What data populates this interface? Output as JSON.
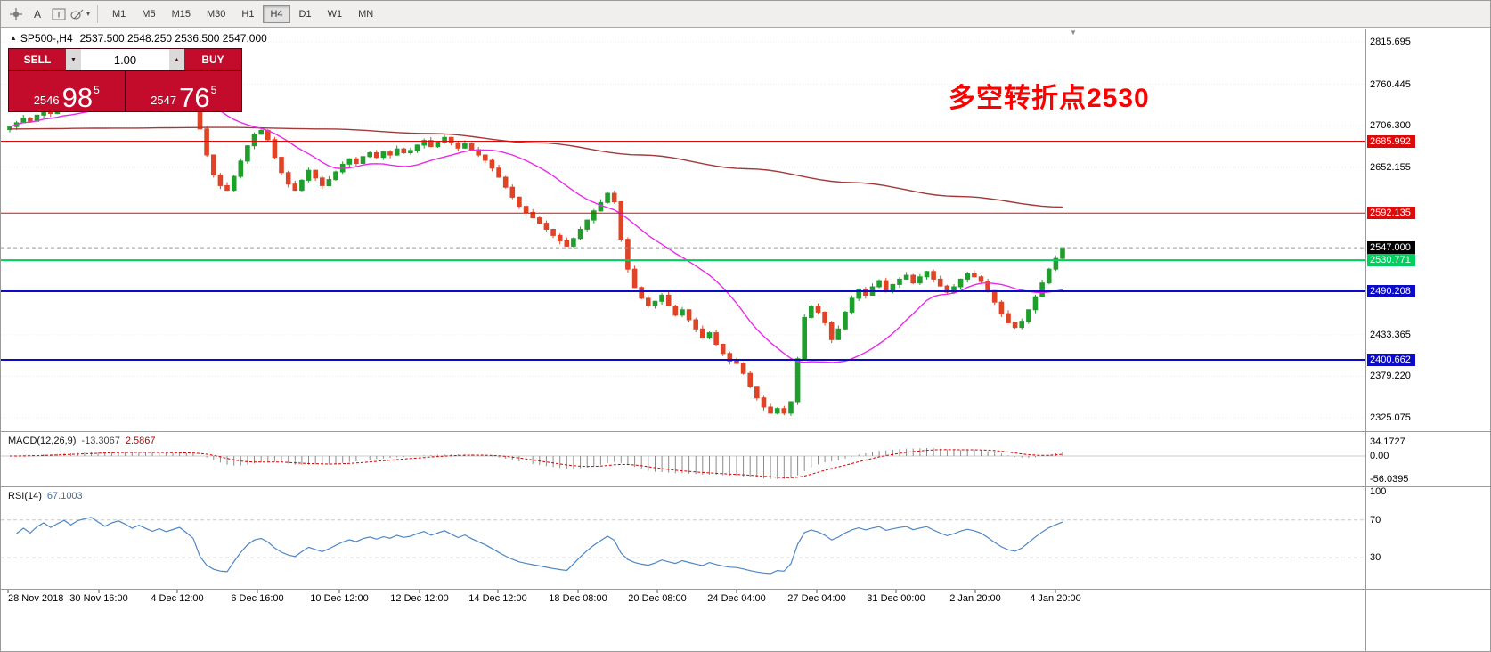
{
  "toolbar": {
    "icons": [
      {
        "name": "crosshair-tool"
      },
      {
        "name": "text-label-tool",
        "glyph": "A"
      },
      {
        "name": "text-box-tool",
        "glyph": "T"
      },
      {
        "name": "shapes-tool"
      }
    ],
    "timeframes": [
      {
        "label": "M1",
        "active": false
      },
      {
        "label": "M5",
        "active": false
      },
      {
        "label": "M15",
        "active": false
      },
      {
        "label": "M30",
        "active": false
      },
      {
        "label": "H1",
        "active": false
      },
      {
        "label": "H4",
        "active": true
      },
      {
        "label": "D1",
        "active": false
      },
      {
        "label": "W1",
        "active": false
      },
      {
        "label": "MN",
        "active": false
      }
    ]
  },
  "symbol_header": {
    "marker": "▲",
    "symbol": "SP500-,H4",
    "ohlc": "2537.500 2548.250 2536.500 2547.000"
  },
  "trade_panel": {
    "sell_label": "SELL",
    "buy_label": "BUY",
    "volume": "1.00",
    "spinner_down": "▼",
    "spinner_up": "▲",
    "sell_price": {
      "stem": "2546",
      "big": "98",
      "sup": "5"
    },
    "buy_price": {
      "stem": "2547",
      "big": "76",
      "sup": "5"
    }
  },
  "annotation": {
    "text": "多空转折点2530",
    "color": "#fe0000"
  },
  "chart_shift_marker": {
    "glyph": "▼"
  },
  "hlines": [
    {
      "price": 2685.992,
      "label": "2685.992",
      "color": "#dd0a0a",
      "thickness": 1
    },
    {
      "price": 2592.135,
      "label": "2592.135",
      "color": "#dd0a0a",
      "thickness": 1
    },
    {
      "price": 2530.771,
      "label": "2530.771",
      "color": "#00cf5d",
      "thickness": 2
    },
    {
      "price": 2490.208,
      "label": "2490.208",
      "color": "#0a0ac8",
      "thickness": 2
    },
    {
      "price": 2400.662,
      "label": "2400.662",
      "color": "#0a0ac8",
      "thickness": 2
    }
  ],
  "current_price": {
    "price": 2547.0,
    "label": "2547.000",
    "tag_bg": "#000000"
  },
  "price_axis": {
    "labels": [
      {
        "text": "2815.695",
        "value": 2815.695
      },
      {
        "text": "2760.445",
        "value": 2760.445
      },
      {
        "text": "2706.300",
        "value": 2706.3
      },
      {
        "text": "2652.155",
        "value": 2652.155
      },
      {
        "text": "2433.365",
        "value": 2433.365
      },
      {
        "text": "2379.220",
        "value": 2379.22
      },
      {
        "text": "2325.075",
        "value": 2325.075
      }
    ]
  },
  "time_axis": {
    "labels": [
      "28 Nov 2018",
      "30 Nov 16:00",
      "4 Dec 12:00",
      "6 Dec 16:00",
      "10 Dec 12:00",
      "12 Dec 12:00",
      "14 Dec 12:00",
      "18 Dec 08:00",
      "20 Dec 08:00",
      "24 Dec 04:00",
      "27 Dec 04:00",
      "31 Dec 00:00",
      "2 Jan 20:00",
      "4 Jan 20:00"
    ]
  },
  "macd_panel": {
    "title": "MACD(12,26,9)",
    "main_value": "-13.3067",
    "signal_value": "2.5867",
    "scale": [
      {
        "text": "34.1727",
        "v": 34.1727
      },
      {
        "text": "0.00",
        "v": 0
      },
      {
        "text": "-56.0395",
        "v": -56.0395
      }
    ],
    "histogram_color": "#8a8a8a",
    "signal_color": "#d40000"
  },
  "rsi_panel": {
    "title": "RSI(14)",
    "value": "67.1003",
    "scale": [
      {
        "text": "100",
        "v": 100
      },
      {
        "text": "70",
        "v": 70
      },
      {
        "text": "30",
        "v": 30
      }
    ],
    "levels": [
      70,
      30
    ],
    "line_color": "#4d86c6"
  },
  "chart_data": {
    "type": "candlestick",
    "symbol": "SP500-",
    "timeframe": "H4",
    "ohlc_header": {
      "open": 2537.5,
      "high": 2548.25,
      "low": 2536.5,
      "close": 2547.0
    },
    "axis": {
      "price_top": 2815.695,
      "price_bottom": 2325.075
    },
    "up_color": "#1f9e2b",
    "down_color": "#e04326",
    "closes": [
      2705,
      2710,
      2716,
      2712,
      2720,
      2726,
      2722,
      2728,
      2734,
      2730,
      2738,
      2742,
      2745,
      2741,
      2737,
      2743,
      2747,
      2744,
      2740,
      2745,
      2742,
      2739,
      2743,
      2740,
      2743,
      2746,
      2741,
      2735,
      2702,
      2668,
      2642,
      2628,
      2622,
      2640,
      2660,
      2680,
      2695,
      2700,
      2688,
      2665,
      2645,
      2630,
      2622,
      2635,
      2648,
      2638,
      2628,
      2636,
      2646,
      2656,
      2663,
      2657,
      2666,
      2671,
      2665,
      2672,
      2668,
      2676,
      2671,
      2674,
      2681,
      2687,
      2679,
      2685,
      2691,
      2684,
      2677,
      2683,
      2675,
      2668,
      2661,
      2651,
      2639,
      2626,
      2613,
      2601,
      2593,
      2586,
      2579,
      2571,
      2563,
      2556,
      2549,
      2559,
      2571,
      2583,
      2595,
      2606,
      2618,
      2607,
      2558,
      2519,
      2495,
      2481,
      2471,
      2477,
      2485,
      2471,
      2459,
      2466,
      2453,
      2441,
      2429,
      2436,
      2421,
      2409,
      2399,
      2396,
      2383,
      2366,
      2351,
      2339,
      2331,
      2337,
      2331,
      2346,
      2402,
      2456,
      2471,
      2463,
      2449,
      2427,
      2441,
      2463,
      2481,
      2493,
      2485,
      2496,
      2504,
      2491,
      2499,
      2506,
      2511,
      2501,
      2509,
      2516,
      2506,
      2497,
      2489,
      2496,
      2506,
      2513,
      2509,
      2503,
      2491,
      2476,
      2461,
      2449,
      2443,
      2451,
      2466,
      2483,
      2501,
      2519,
      2533,
      2547
    ],
    "fast_ma": {
      "period": 20,
      "color": "#ea2bea"
    },
    "slow_ma": {
      "color": "#a33a3a",
      "points": [
        [
          0,
          2702
        ],
        [
          0.1,
          2703
        ],
        [
          0.2,
          2704
        ],
        [
          0.3,
          2702
        ],
        [
          0.4,
          2696
        ],
        [
          0.5,
          2684
        ],
        [
          0.6,
          2668
        ],
        [
          0.7,
          2650
        ],
        [
          0.8,
          2632
        ],
        [
          0.9,
          2614
        ],
        [
          1,
          2600
        ]
      ]
    }
  }
}
